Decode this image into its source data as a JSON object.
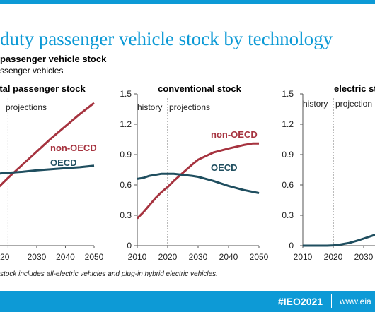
{
  "slide_title": "duty passenger vehicle stock by technology",
  "chart_title": "passenger vehicle stock",
  "chart_subtitle": "ssenger vehicles",
  "footnote": "stock includes all-electric vehicles and plug-in  hybrid electric vehicles.",
  "footer": {
    "hashtag": "#IEO2021",
    "link": "www.eia"
  },
  "colors": {
    "accent": "#0d9ad6",
    "non_oecd": "#a6333f",
    "oecd": "#1f4e5f"
  },
  "chart_data": [
    {
      "type": "line",
      "title": "tal passenger stock",
      "annotations": [
        "projections"
      ],
      "x_tick_labels": [
        "020",
        "2030",
        "2040",
        "2050"
      ],
      "xlim": [
        2015.7,
        2050
      ],
      "ylim": [
        0,
        1.5
      ],
      "grid": false,
      "projection_start": 2020,
      "series": [
        {
          "name": "non-OECD",
          "x": [
            2015.7,
            2020,
            2025,
            2030,
            2035,
            2040,
            2045,
            2050
          ],
          "y": [
            0.55,
            0.67,
            0.8,
            0.93,
            1.06,
            1.18,
            1.3,
            1.41
          ]
        },
        {
          "name": "OECD",
          "x": [
            2015.7,
            2020,
            2025,
            2030,
            2035,
            2040,
            2045,
            2050
          ],
          "y": [
            0.71,
            0.72,
            0.73,
            0.745,
            0.755,
            0.765,
            0.775,
            0.79
          ]
        }
      ]
    },
    {
      "type": "line",
      "title": "conventional stock",
      "annotations": [
        "history",
        "projections"
      ],
      "x_tick_labels": [
        "2010",
        "2020",
        "2030",
        "2040",
        "2050"
      ],
      "y_tick_labels": [
        "0",
        "0.3",
        "0.6",
        "0.9",
        "1.2",
        "1.5"
      ],
      "xlim": [
        2010,
        2050
      ],
      "ylim": [
        0,
        1.5
      ],
      "grid": false,
      "projection_start": 2020,
      "series": [
        {
          "name": "non-OECD",
          "x": [
            2010,
            2012,
            2014,
            2016,
            2018,
            2020,
            2022,
            2025,
            2028,
            2030,
            2035,
            2040,
            2045,
            2048,
            2050
          ],
          "y": [
            0.27,
            0.33,
            0.4,
            0.47,
            0.53,
            0.58,
            0.64,
            0.72,
            0.8,
            0.85,
            0.92,
            0.96,
            0.995,
            1.01,
            1.01
          ]
        },
        {
          "name": "OECD",
          "x": [
            2010,
            2012,
            2014,
            2016,
            2018,
            2020,
            2022,
            2025,
            2028,
            2030,
            2035,
            2040,
            2045,
            2050
          ],
          "y": [
            0.66,
            0.67,
            0.69,
            0.7,
            0.71,
            0.71,
            0.71,
            0.7,
            0.69,
            0.68,
            0.64,
            0.59,
            0.55,
            0.52
          ]
        }
      ]
    },
    {
      "type": "line",
      "title": "electric st",
      "annotations": [
        "history",
        "projection"
      ],
      "x_tick_labels": [
        "2010",
        "2020",
        "2030"
      ],
      "y_tick_labels": [
        "0",
        "0.3",
        "0.6",
        "0.9",
        "1.2",
        "1.5"
      ],
      "xlim": [
        2010,
        2050
      ],
      "ylim": [
        0,
        1.5
      ],
      "grid": false,
      "projection_start": 2020,
      "series": [
        {
          "x": [
            2010,
            2015,
            2018,
            2020,
            2022,
            2025,
            2028,
            2030,
            2033,
            2034
          ],
          "y": [
            0.0,
            0.0,
            0.0,
            0.003,
            0.01,
            0.025,
            0.05,
            0.07,
            0.1,
            0.11
          ]
        }
      ]
    }
  ]
}
